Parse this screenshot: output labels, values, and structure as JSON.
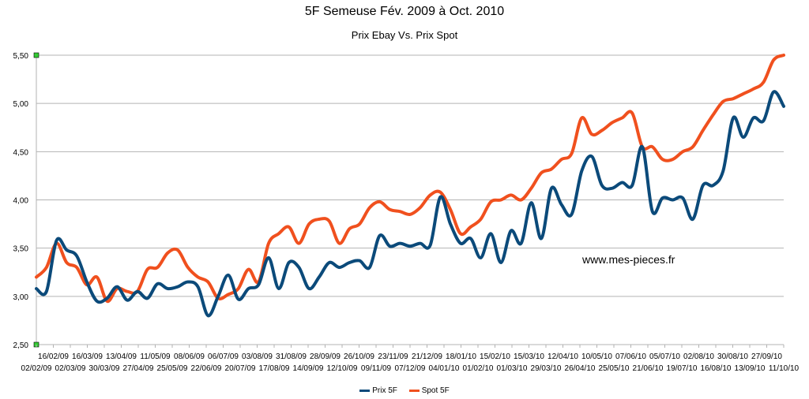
{
  "chart_data": {
    "type": "line",
    "title": "5F Semeuse Fév. 2009 à Oct. 2010",
    "subtitle": "Prix Ebay Vs. Prix Spot",
    "annotation": "www.mes-pieces.fr",
    "ylim": [
      2.5,
      5.5
    ],
    "yticks": [
      "2,50",
      "3,00",
      "3,50",
      "4,00",
      "4,50",
      "5,00",
      "5,50"
    ],
    "ytick_values": [
      2.5,
      3.0,
      3.5,
      4.0,
      4.5,
      5.0,
      5.5
    ],
    "grid": true,
    "legend_position": "bottom",
    "x_labels_lower": [
      "02/02/09",
      "02/03/09",
      "30/03/09",
      "27/04/09",
      "25/05/09",
      "22/06/09",
      "20/07/09",
      "17/08/09",
      "14/09/09",
      "12/10/09",
      "09/11/09",
      "07/12/09",
      "04/01/10",
      "01/02/10",
      "01/03/10",
      "29/03/10",
      "26/04/10",
      "25/05/10",
      "21/06/10",
      "19/07/10",
      "16/08/10",
      "13/09/10",
      "11/10/10"
    ],
    "x_labels_upper": [
      "16/02/09",
      "16/03/09",
      "13/04/09",
      "11/05/09",
      "08/06/09",
      "06/07/09",
      "03/08/09",
      "31/08/09",
      "28/09/09",
      "26/10/09",
      "23/11/09",
      "21/12/09",
      "18/01/10",
      "15/02/10",
      "15/03/10",
      "12/04/10",
      "10/05/10",
      "07/06/10",
      "05/07/10",
      "02/08/10",
      "30/08/10",
      "27/09/10"
    ],
    "series": [
      {
        "name": "Prix 5F",
        "color": "#0b4a7a",
        "values": [
          3.08,
          3.05,
          3.58,
          3.48,
          3.42,
          3.15,
          2.95,
          2.98,
          3.1,
          2.96,
          3.05,
          2.98,
          3.13,
          3.08,
          3.1,
          3.15,
          3.1,
          2.8,
          3.0,
          3.22,
          2.97,
          3.08,
          3.12,
          3.4,
          3.08,
          3.35,
          3.3,
          3.08,
          3.2,
          3.35,
          3.3,
          3.35,
          3.37,
          3.3,
          3.63,
          3.52,
          3.55,
          3.52,
          3.55,
          3.53,
          4.03,
          3.75,
          3.55,
          3.6,
          3.4,
          3.65,
          3.35,
          3.68,
          3.55,
          3.97,
          3.6,
          4.12,
          3.95,
          3.85,
          4.3,
          4.45,
          4.15,
          4.12,
          4.18,
          4.15,
          4.55,
          3.88,
          4.02,
          4.0,
          4.02,
          3.8,
          4.15,
          4.15,
          4.3,
          4.85,
          4.65,
          4.85,
          4.82,
          5.12,
          4.97
        ]
      },
      {
        "name": "Spot 5F",
        "color": "#f0501e",
        "values": [
          3.2,
          3.3,
          3.55,
          3.35,
          3.3,
          3.12,
          3.2,
          2.95,
          3.08,
          3.05,
          3.05,
          3.28,
          3.3,
          3.45,
          3.48,
          3.3,
          3.2,
          3.15,
          2.98,
          3.02,
          3.08,
          3.28,
          3.15,
          3.55,
          3.65,
          3.72,
          3.55,
          3.75,
          3.8,
          3.78,
          3.55,
          3.7,
          3.75,
          3.92,
          3.98,
          3.9,
          3.88,
          3.85,
          3.92,
          4.05,
          4.08,
          3.9,
          3.65,
          3.72,
          3.8,
          3.98,
          4.0,
          4.05,
          4.0,
          4.12,
          4.28,
          4.32,
          4.42,
          4.48,
          4.85,
          4.68,
          4.72,
          4.8,
          4.85,
          4.9,
          4.55,
          4.55,
          4.42,
          4.42,
          4.5,
          4.55,
          4.72,
          4.88,
          5.02,
          5.05,
          5.1,
          5.15,
          5.22,
          5.45,
          5.5
        ]
      }
    ]
  }
}
